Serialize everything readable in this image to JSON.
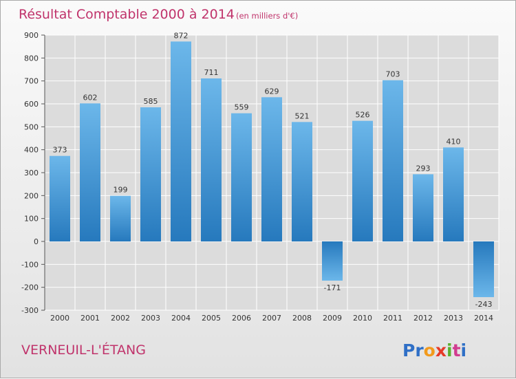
{
  "title": "Résultat Comptable 2000 à 2014",
  "unit_note": "(en milliers d'€)",
  "place_name": "VERNEUIL-L'ÉTANG",
  "logo": {
    "letters": [
      "P",
      "r",
      "o",
      "x",
      "i",
      "t",
      "i"
    ],
    "colors": [
      "#2f6fc6",
      "#2f6fc6",
      "#f29a1c",
      "#e63a28",
      "#5ab02e",
      "#d13b8f",
      "#2f6fc6"
    ]
  },
  "colors": {
    "bar_top": "#6cb7ea",
    "bar_bottom": "#2679bd",
    "grid": "#ffffff",
    "plot_bg": "#dcdcdc",
    "title": "#c0336b"
  },
  "chart_data": {
    "type": "bar",
    "title": "Résultat Comptable 2000 à 2014",
    "subtitle": "(en milliers d'€)",
    "categories": [
      "2000",
      "2001",
      "2002",
      "2003",
      "2004",
      "2005",
      "2006",
      "2007",
      "2008",
      "2009",
      "2010",
      "2011",
      "2012",
      "2013",
      "2014"
    ],
    "values": [
      373,
      602,
      199,
      585,
      872,
      711,
      559,
      629,
      521,
      -171,
      526,
      703,
      293,
      410,
      -243
    ],
    "ylim": [
      -300,
      900
    ],
    "yticks": [
      -300,
      -200,
      -100,
      0,
      100,
      200,
      300,
      400,
      500,
      600,
      700,
      800,
      900
    ],
    "grid": true,
    "legend": "none"
  }
}
